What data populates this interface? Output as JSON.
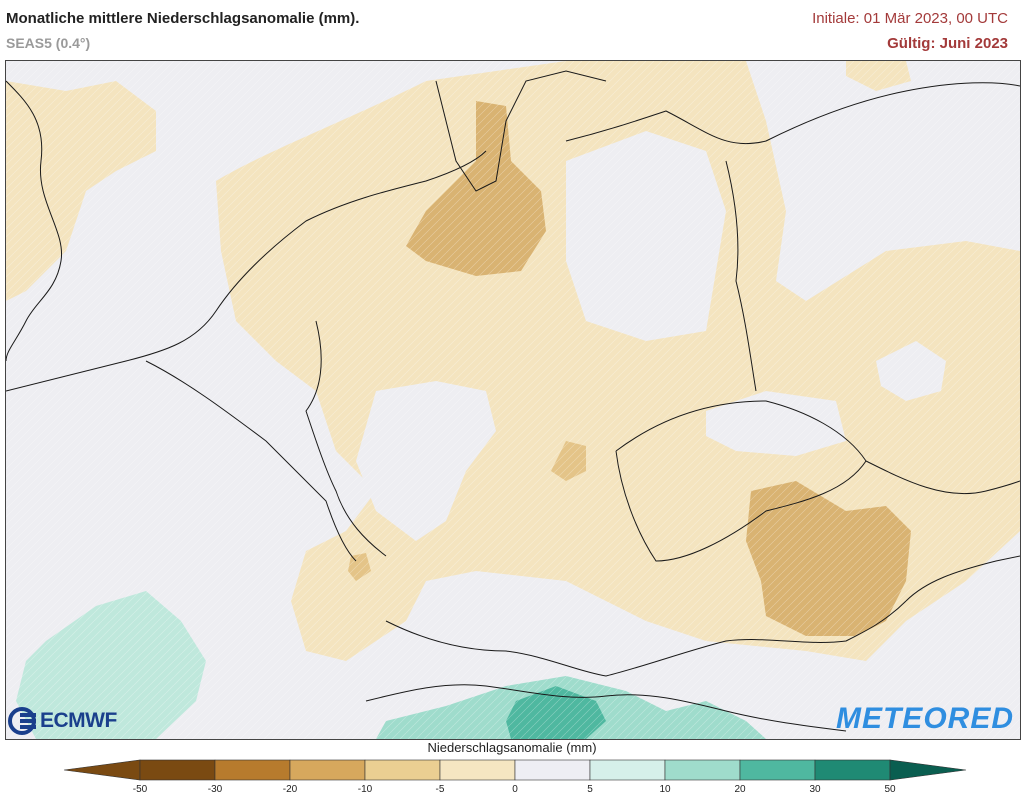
{
  "header": {
    "title": "Monatliche mittlere Niederschlagsanomalie (mm).",
    "subtitle": "SEAS5 (0.4°)",
    "initiale": "Initiale: 01 Mär 2023, 00 UTC",
    "gueltig": "Gültig: Juni 2023"
  },
  "logos": {
    "left": "ECMWF",
    "right": "METEORED"
  },
  "legend": {
    "title": "Niederschlagsanomalie (mm)",
    "ticks": [
      "-50",
      "-30",
      "-20",
      "-10",
      "-5",
      "0",
      "5",
      "10",
      "20",
      "30",
      "50"
    ],
    "colors": [
      "#7a4a12",
      "#b77b2d",
      "#d7a85d",
      "#ebcf92",
      "#f5e6c2",
      "#eeeef4",
      "#d6f0ea",
      "#9fdccc",
      "#4fb8a0",
      "#1f8a74",
      "#0a5e50"
    ]
  },
  "colors": {
    "accent_header": "#a33a3a",
    "ecmwf_blue": "#1a3f8c",
    "meteored_blue": "#2f8ee0"
  }
}
